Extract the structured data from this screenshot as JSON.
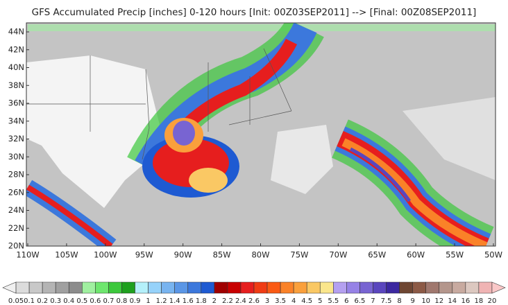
{
  "title": "GFS Accumulated Precip [inches] 0-120 hours [Init: 00Z03SEP2011] --> [Final: 00Z08SEP2011]",
  "map": {
    "lon_labels": [
      "110W",
      "105W",
      "100W",
      "95W",
      "90W",
      "85W",
      "80W",
      "75W",
      "70W",
      "65W",
      "60W",
      "55W",
      "50W"
    ],
    "lat_labels": [
      "20N",
      "22N",
      "24N",
      "26N",
      "28N",
      "30N",
      "32N",
      "34N",
      "36N",
      "38N",
      "40N",
      "42N",
      "44N"
    ]
  },
  "colorbar": {
    "labels": [
      "0.05",
      "0.1",
      "0.2",
      "0.3",
      "0.4",
      "0.5",
      "0.6",
      "0.7",
      "0.8",
      "0.9",
      "1",
      "1.2",
      "1.4",
      "1.6",
      "1.8",
      "2",
      "2.2",
      "2.4",
      "2.6",
      "3",
      "3.5",
      "4",
      "4.5",
      "5",
      "5.5",
      "6",
      "6.5",
      "7",
      "7.5",
      "8",
      "9",
      "10",
      "12",
      "14",
      "16",
      "18",
      "20"
    ],
    "colors": [
      "#f0f0f0",
      "#dcdcdc",
      "#c8c8c8",
      "#b4b4b4",
      "#a0a0a0",
      "#8c8c8c",
      "#a0f0a0",
      "#6ee66e",
      "#3cc83c",
      "#1ea01e",
      "#b4f0fa",
      "#96d2fa",
      "#78b4f0",
      "#5a96e6",
      "#3c78dc",
      "#1e5ad2",
      "#a00000",
      "#c80000",
      "#e61e1e",
      "#f03c14",
      "#fa5a14",
      "#fa8228",
      "#faa03c",
      "#fac864",
      "#fae68c",
      "#b4a0f0",
      "#9682e6",
      "#7864d2",
      "#5a46be",
      "#3c28a0",
      "#6e4632",
      "#8c5a46",
      "#a0786e",
      "#b4968c",
      "#c8aaa0",
      "#dcc8c0",
      "#f0b4b4",
      "#fac8c8"
    ]
  }
}
